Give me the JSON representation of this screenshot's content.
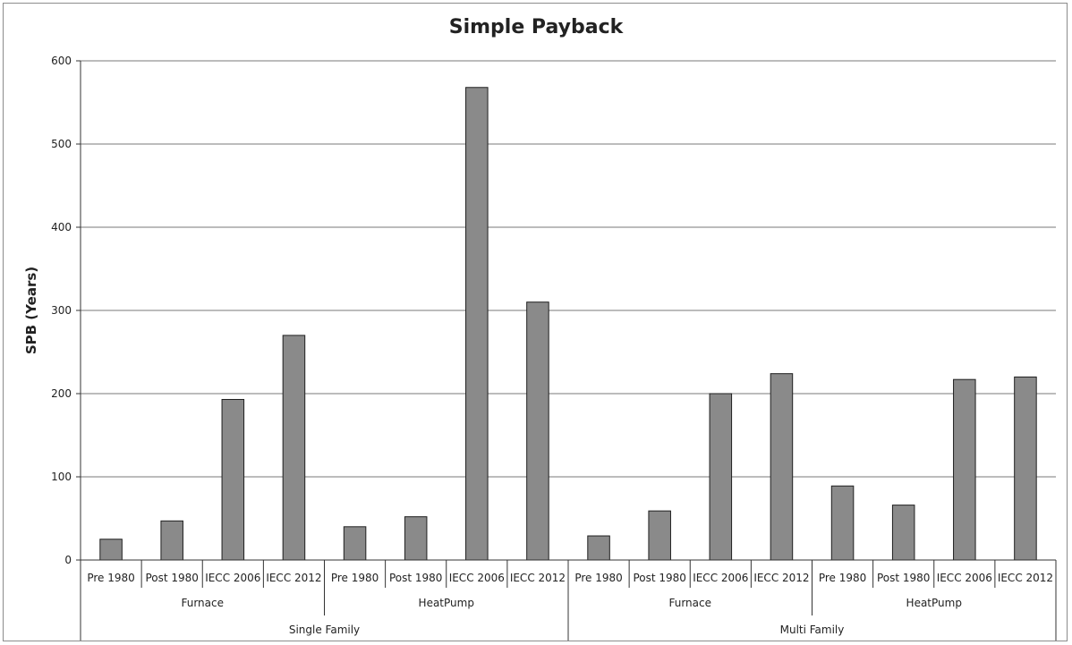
{
  "chart_data": {
    "type": "bar",
    "title": "Simple Payback",
    "ylabel": "SPB (Years)",
    "xlabel": "",
    "ylim": [
      0,
      600
    ],
    "yticks": [
      0,
      100,
      200,
      300,
      400,
      500,
      600
    ],
    "grid": true,
    "legend": "none",
    "bar_color": "#8a8a8a",
    "groups": [
      {
        "name": "Single Family",
        "subgroups": [
          {
            "name": "Furnace",
            "categories": [
              "Pre 1980",
              "Post 1980",
              "IECC 2006",
              "IECC 2012"
            ],
            "values": [
              25,
              47,
              193,
              270
            ]
          },
          {
            "name": "HeatPump",
            "categories": [
              "Pre 1980",
              "Post 1980",
              "IECC 2006",
              "IECC 2012"
            ],
            "values": [
              40,
              52,
              568,
              310
            ]
          }
        ]
      },
      {
        "name": "Multi Family",
        "subgroups": [
          {
            "name": "Furnace",
            "categories": [
              "Pre 1980",
              "Post 1980",
              "IECC 2006",
              "IECC 2012"
            ],
            "values": [
              29,
              59,
              200,
              224
            ]
          },
          {
            "name": "HeatPump",
            "categories": [
              "Pre 1980",
              "Post 1980",
              "IECC 2006",
              "IECC 2012"
            ],
            "values": [
              89,
              66,
              217,
              220
            ]
          }
        ]
      }
    ]
  }
}
